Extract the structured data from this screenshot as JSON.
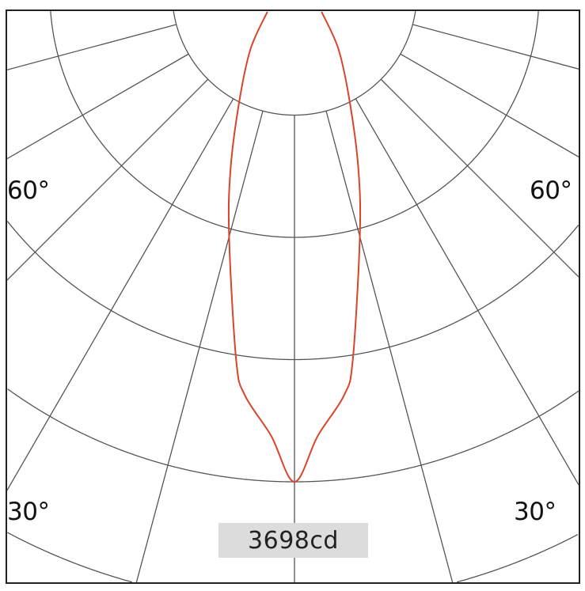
{
  "chart_data": {
    "type": "polar",
    "unit": "cd",
    "peak_label": "3698cd",
    "peak_candela": 3698,
    "angle_labels": {
      "left_60": "60°",
      "right_60": "60°",
      "left_30": "30°",
      "right_30": "30°"
    },
    "radial_grid_step_deg": 15,
    "ring_count": 4,
    "series": [
      {
        "angles_deg": [
          0,
          3,
          7,
          9,
          15,
          20,
          27,
          38,
          55
        ],
        "candela": [
          3698,
          3356,
          3068,
          2815,
          1909,
          1411,
          918,
          540,
          250
        ],
        "symmetric": true
      }
    ]
  },
  "colors": {
    "curve": "#d9442a",
    "grid": "#555555",
    "label_bg": "#dcdcdc",
    "frame": "#222222"
  }
}
